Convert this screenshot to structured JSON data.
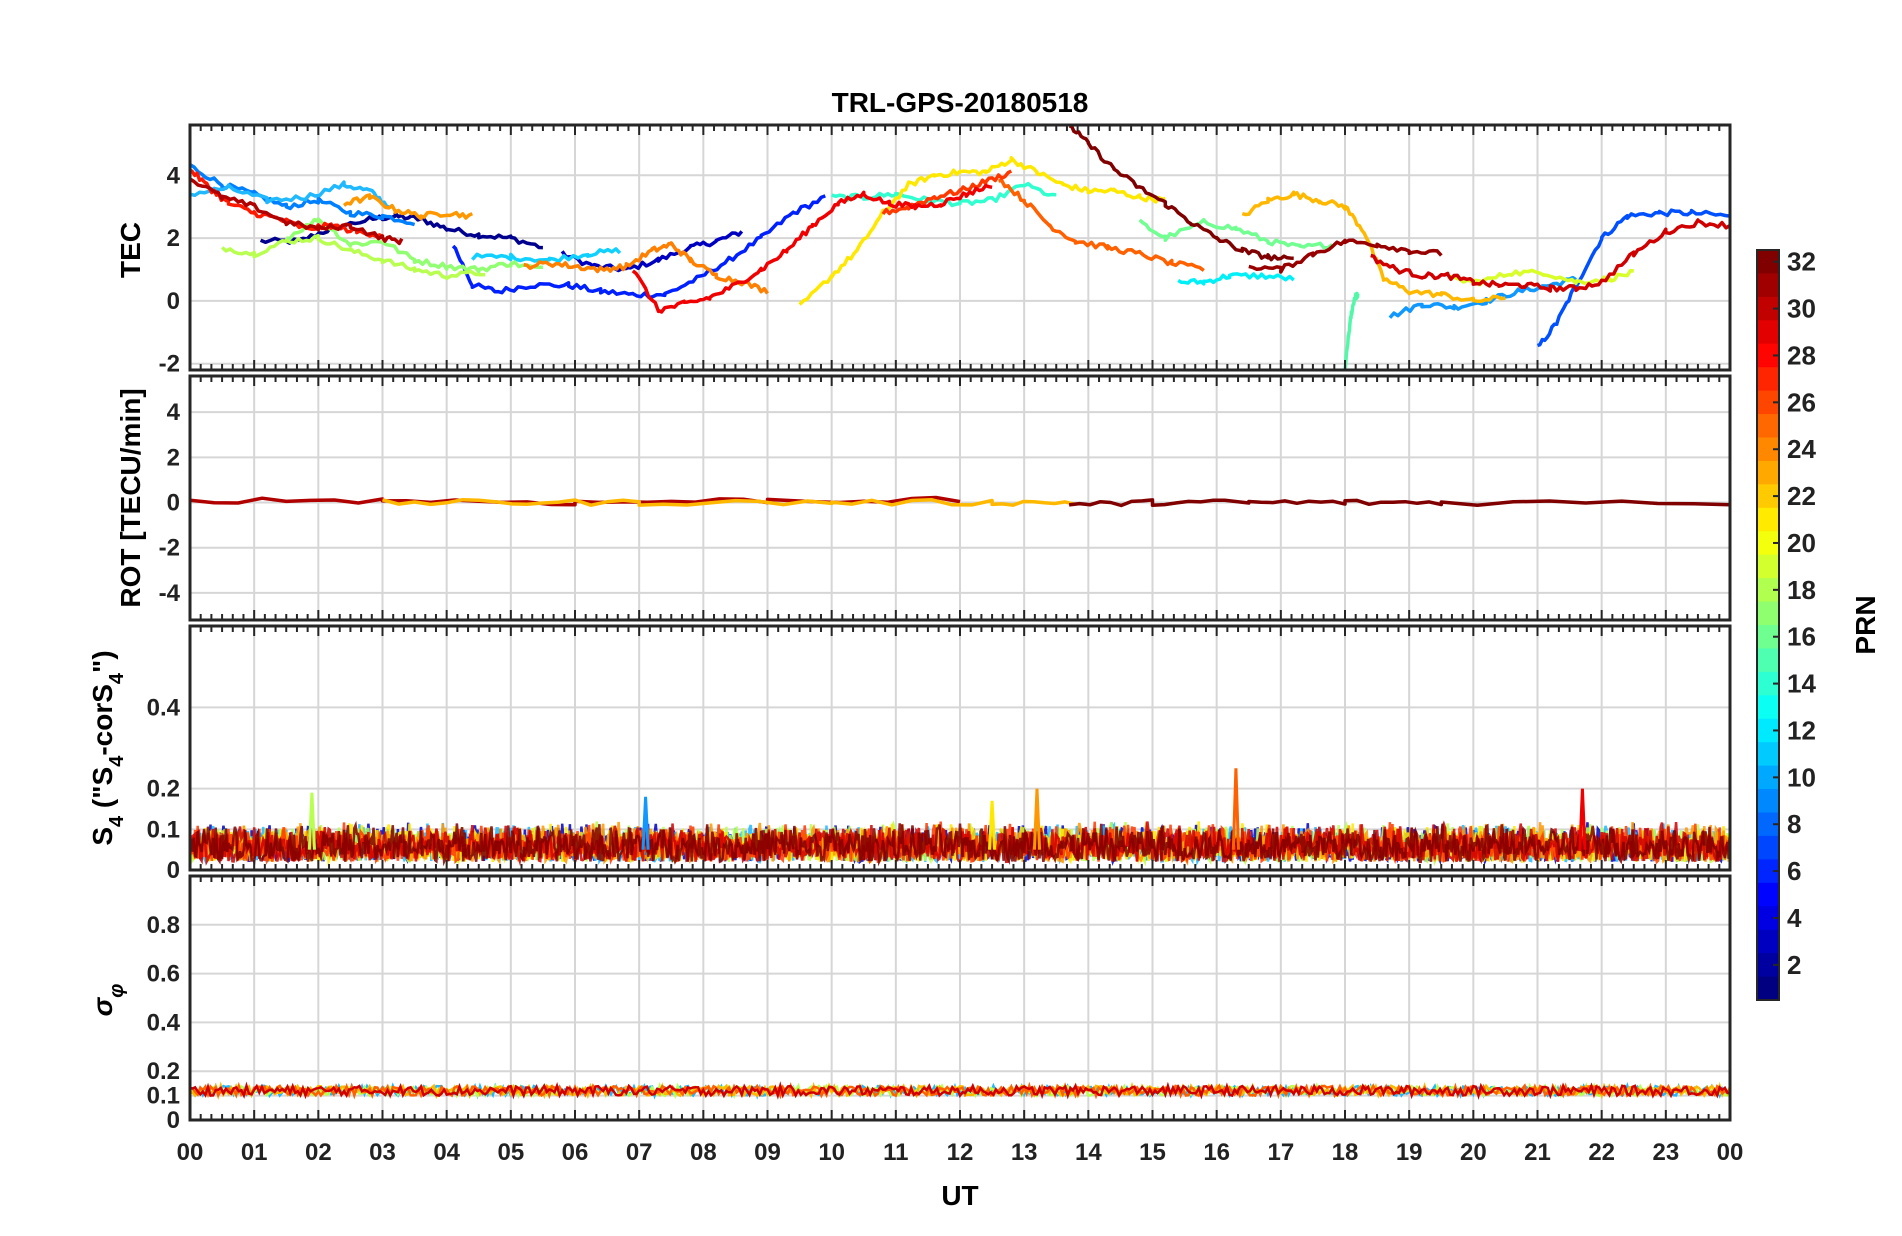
{
  "chart_data": {
    "type": "line",
    "title": "TRL-GPS-20180518",
    "xlabel": "UT",
    "x_ticks": [
      "00",
      "01",
      "02",
      "03",
      "04",
      "05",
      "06",
      "07",
      "08",
      "09",
      "10",
      "11",
      "12",
      "13",
      "14",
      "15",
      "16",
      "17",
      "18",
      "19",
      "20",
      "21",
      "22",
      "23",
      "00"
    ],
    "xlim": [
      0,
      24
    ],
    "grid": true,
    "colorbar": {
      "label": "PRN",
      "colormap": "jet",
      "range": [
        1,
        32
      ],
      "ticks": [
        "2",
        "4",
        "6",
        "8",
        "10",
        "12",
        "14",
        "16",
        "18",
        "20",
        "22",
        "24",
        "26",
        "28",
        "30",
        "32"
      ],
      "placement": "right"
    },
    "panels": [
      {
        "ylabel": "TEC",
        "ylim": [
          -2.2,
          5.6
        ],
        "yticks": [
          "-2",
          "0",
          "2",
          "4"
        ],
        "series": [
          {
            "prn": 1,
            "color": "#00008f",
            "x": [
              1.1,
              1.7,
              2.2,
              2.8,
              3.2,
              3.6,
              4.0,
              4.5,
              5.0,
              5.5
            ],
            "y": [
              1.9,
              1.9,
              2.3,
              2.6,
              2.7,
              2.6,
              2.3,
              2.1,
              2.0,
              1.7
            ]
          },
          {
            "prn": 2,
            "color": "#0000c0",
            "x": [
              5.8,
              6.3,
              6.8,
              7.3,
              7.8,
              8.2,
              8.6
            ],
            "y": [
              1.5,
              1.1,
              1.0,
              1.3,
              1.7,
              1.9,
              2.2
            ]
          },
          {
            "prn": 5,
            "color": "#0020ff",
            "x": [
              4.1,
              4.4,
              4.8,
              5.3,
              5.9,
              6.4,
              6.9,
              7.4,
              7.9,
              8.4,
              8.9,
              9.4,
              9.9
            ],
            "y": [
              1.8,
              0.5,
              0.3,
              0.5,
              0.5,
              0.3,
              0.2,
              0.2,
              0.7,
              1.3,
              2.0,
              2.8,
              3.3
            ]
          },
          {
            "prn": 6,
            "color": "#0050ff",
            "x": [
              21.0,
              21.3,
              21.6,
              22.0,
              22.4,
              22.9,
              23.4,
              24.0
            ],
            "y": [
              -1.5,
              -0.7,
              0.5,
              2.0,
              2.7,
              2.8,
              2.8,
              2.7
            ]
          },
          {
            "prn": 9,
            "color": "#0080ff",
            "x": [
              0.0,
              0.5,
              1.0,
              1.5,
              2.0,
              2.5,
              3.0,
              3.5
            ],
            "y": [
              4.3,
              3.7,
              3.4,
              3.0,
              3.2,
              2.8,
              2.7,
              2.5
            ]
          },
          {
            "prn": 10,
            "color": "#1098ff",
            "x": [
              18.7,
              19.2,
              19.7,
              20.2,
              20.7,
              21.2,
              21.6
            ],
            "y": [
              -0.5,
              -0.1,
              -0.2,
              0.0,
              0.3,
              0.5,
              0.7
            ]
          },
          {
            "prn": 11,
            "color": "#20b8ff",
            "x": [
              0.0,
              0.6,
              1.2,
              1.8,
              2.4,
              2.8,
              3.1
            ],
            "y": [
              3.4,
              3.6,
              3.2,
              3.3,
              3.7,
              3.5,
              3.0
            ]
          },
          {
            "prn": 12,
            "color": "#10d0ff",
            "x": [
              4.4,
              5.0,
              5.6,
              6.2,
              6.7
            ],
            "y": [
              1.4,
              1.4,
              1.3,
              1.5,
              1.6
            ]
          },
          {
            "prn": 13,
            "color": "#00f0f8",
            "x": [
              15.4,
              15.8,
              16.2,
              16.7,
              17.2
            ],
            "y": [
              0.6,
              0.6,
              0.8,
              0.8,
              0.7
            ]
          },
          {
            "prn": 14,
            "color": "#30ffd0",
            "x": [
              10.0,
              10.5,
              11.0,
              11.5,
              12.0,
              12.5,
              13.0,
              13.5
            ],
            "y": [
              3.3,
              3.3,
              3.4,
              3.2,
              3.1,
              3.2,
              3.7,
              3.3
            ]
          },
          {
            "prn": 15,
            "color": "#50f8a8",
            "x": [
              18.0,
              18.05,
              18.1,
              18.15,
              18.2
            ],
            "y": [
              -2.2,
              -1.2,
              -0.4,
              0.1,
              0.2
            ]
          },
          {
            "prn": 16,
            "color": "#70ff90",
            "x": [
              14.8,
              15.2,
              15.8,
              16.3,
              16.8,
              17.3,
              17.8
            ],
            "y": [
              2.5,
              2.0,
              2.5,
              2.3,
              1.9,
              1.7,
              1.8
            ]
          },
          {
            "prn": 17,
            "color": "#90ff70",
            "x": [
              1.5,
              2.0,
              2.5,
              3.0,
              3.5,
              4.0,
              4.5,
              5.0,
              5.5
            ],
            "y": [
              2.0,
              2.6,
              1.8,
              1.9,
              1.3,
              1.1,
              1.0,
              1.2,
              1.0
            ]
          },
          {
            "prn": 18,
            "color": "#b8ff50",
            "x": [
              0.5,
              1.0,
              1.5,
              2.0,
              2.5,
              3.0,
              3.5,
              4.0,
              4.6
            ],
            "y": [
              1.7,
              1.5,
              1.9,
              2.0,
              1.6,
              1.3,
              1.0,
              0.8,
              0.9
            ]
          },
          {
            "prn": 19,
            "color": "#d8ff28",
            "x": [
              19.6,
              20.1,
              20.6,
              21.1,
              21.6,
              22.1,
              22.5
            ],
            "y": [
              0.7,
              0.6,
              0.9,
              0.9,
              0.6,
              0.7,
              0.9
            ]
          },
          {
            "prn": 20,
            "color": "#ffe800",
            "x": [
              9.5,
              10.0,
              10.4,
              10.8,
              11.2,
              11.6,
              12.0,
              12.4,
              12.8,
              13.2,
              13.6,
              14.0,
              14.4,
              14.8,
              15.2
            ],
            "y": [
              -0.2,
              0.8,
              1.6,
              2.8,
              3.7,
              4.0,
              4.1,
              4.1,
              4.5,
              4.1,
              3.7,
              3.5,
              3.5,
              3.3,
              3.2
            ]
          },
          {
            "prn": 22,
            "color": "#ffb800",
            "x": [
              16.4,
              16.8,
              17.2,
              17.6,
              18.0,
              18.3,
              18.6,
              19.0,
              19.5,
              20.0,
              20.5
            ],
            "y": [
              2.7,
              3.2,
              3.4,
              3.2,
              3.0,
              2.2,
              0.7,
              0.3,
              0.2,
              0.0,
              0.1
            ]
          },
          {
            "prn": 23,
            "color": "#ff9800",
            "x": [
              2.4,
              2.8,
              3.2,
              3.6,
              4.0,
              4.4
            ],
            "y": [
              3.1,
              3.3,
              2.9,
              2.7,
              2.8,
              2.7
            ]
          },
          {
            "prn": 24,
            "color": "#ff8000",
            "x": [
              5.2,
              5.6,
              6.0,
              6.4,
              6.8,
              7.2,
              7.5,
              7.8,
              8.2,
              8.6,
              9.0
            ],
            "y": [
              1.1,
              1.2,
              1.1,
              1.0,
              1.1,
              1.6,
              1.8,
              1.3,
              0.8,
              0.6,
              0.3
            ]
          },
          {
            "prn": 25,
            "color": "#ff6000",
            "x": [
              12.6,
              13.0,
              13.4,
              13.8,
              14.3,
              14.8,
              15.3,
              15.8
            ],
            "y": [
              3.9,
              3.2,
              2.4,
              1.9,
              1.7,
              1.5,
              1.2,
              1.0
            ]
          },
          {
            "prn": 26,
            "color": "#ff3800",
            "x": [
              10.8,
              11.2,
              11.6,
              12.0,
              12.4,
              12.8
            ],
            "y": [
              2.8,
              3.0,
              3.3,
              3.5,
              3.8,
              4.1
            ]
          },
          {
            "prn": 27,
            "color": "#ff1800",
            "x": [
              0.0,
              0.3,
              0.6,
              1.0,
              1.4,
              1.8,
              2.2,
              2.6,
              3.0
            ],
            "y": [
              4.2,
              3.6,
              3.1,
              2.8,
              2.6,
              2.3,
              2.4,
              2.2,
              2.1
            ]
          },
          {
            "prn": 28,
            "color": "#f00000",
            "x": [
              6.9,
              7.3,
              7.7,
              8.1,
              8.5,
              8.9,
              9.3,
              9.7,
              10.1,
              10.5,
              10.9,
              11.3,
              11.7,
              12.1,
              12.5
            ],
            "y": [
              1.0,
              -0.3,
              -0.1,
              0.1,
              0.5,
              1.0,
              1.6,
              2.4,
              3.1,
              3.4,
              3.1,
              3.0,
              3.1,
              3.4,
              3.7
            ]
          },
          {
            "prn": 29,
            "color": "#d00000",
            "x": [
              18.4,
              18.8,
              19.2,
              19.6,
              20.0,
              20.4,
              20.8,
              21.2,
              21.6,
              22.0,
              22.5,
              23.0,
              23.5,
              24.0
            ],
            "y": [
              1.4,
              1.0,
              0.8,
              0.8,
              0.6,
              0.5,
              0.5,
              0.4,
              0.4,
              0.6,
              1.5,
              2.2,
              2.5,
              2.4
            ]
          },
          {
            "prn": 30,
            "color": "#b00000",
            "x": [
              0.0,
              0.5,
              1.0,
              1.5,
              2.0,
              2.5,
              3.0,
              3.3
            ],
            "y": [
              3.9,
              3.3,
              3.0,
              2.5,
              2.3,
              2.4,
              2.0,
              1.9
            ]
          },
          {
            "prn": 31,
            "color": "#980000",
            "x": [
              16.5,
              17.0,
              17.5,
              18.0,
              18.5,
              19.0,
              19.5
            ],
            "y": [
              1.1,
              1.0,
              1.5,
              1.9,
              1.8,
              1.6,
              1.5
            ]
          },
          {
            "prn": 32,
            "color": "#800000",
            "x": [
              13.7,
              14.0,
              14.4,
              14.8,
              15.2,
              15.6,
              16.0,
              16.4,
              16.8,
              17.2
            ],
            "y": [
              5.6,
              5.0,
              4.2,
              3.6,
              3.1,
              2.5,
              2.0,
              1.6,
              1.4,
              1.3
            ]
          }
        ]
      },
      {
        "ylabel": "ROT [TECU/min]",
        "ylim": [
          -5.2,
          5.6
        ],
        "yticks": [
          "-4",
          "-2",
          "0",
          "2",
          "4"
        ],
        "series": [
          {
            "prn": 30,
            "color": "#b00000",
            "x": [
              0.0,
              3.0,
              6.0,
              9.0,
              12.0
            ],
            "y": [
              0.1,
              0.1,
              0.0,
              0.1,
              0.1
            ]
          },
          {
            "prn": 22,
            "color": "#ffb800",
            "x": [
              3.0,
              5.0,
              7.0,
              10.0,
              12.5,
              13.8
            ],
            "y": [
              0.0,
              0.0,
              0.0,
              0.0,
              0.0,
              0.0
            ]
          },
          {
            "prn": 32,
            "color": "#800000",
            "x": [
              13.7,
              15.0,
              16.5,
              18.0,
              19.5,
              24.0
            ],
            "y": [
              -0.1,
              0.0,
              0.0,
              0.0,
              0.0,
              0.0
            ]
          }
        ]
      },
      {
        "ylabel": "S4 (\"S4-corS4\")",
        "ylim": [
          0,
          0.6
        ],
        "yticks": [
          "0",
          "0.1",
          "0.2",
          "0.4"
        ],
        "peaks": [
          {
            "prn": 18,
            "color": "#b8ff50",
            "x": 1.9,
            "y": 0.19
          },
          {
            "prn": 10,
            "color": "#1098ff",
            "x": 7.1,
            "y": 0.18
          },
          {
            "prn": 20,
            "color": "#ffe800",
            "x": 12.5,
            "y": 0.17
          },
          {
            "prn": 23,
            "color": "#ff9800",
            "x": 13.2,
            "y": 0.2
          },
          {
            "prn": 25,
            "color": "#ff6000",
            "x": 16.3,
            "y": 0.25
          },
          {
            "prn": 28,
            "color": "#f00000",
            "x": 21.7,
            "y": 0.2
          }
        ],
        "typical_level": [
          0.02,
          0.12
        ]
      },
      {
        "ylabel": "σφ",
        "ylim": [
          0,
          1.0
        ],
        "yticks": [
          "0",
          "0.1",
          "0.2",
          "0.4",
          "0.6",
          "0.8"
        ],
        "typical_level": [
          0.1,
          0.14
        ]
      }
    ]
  }
}
